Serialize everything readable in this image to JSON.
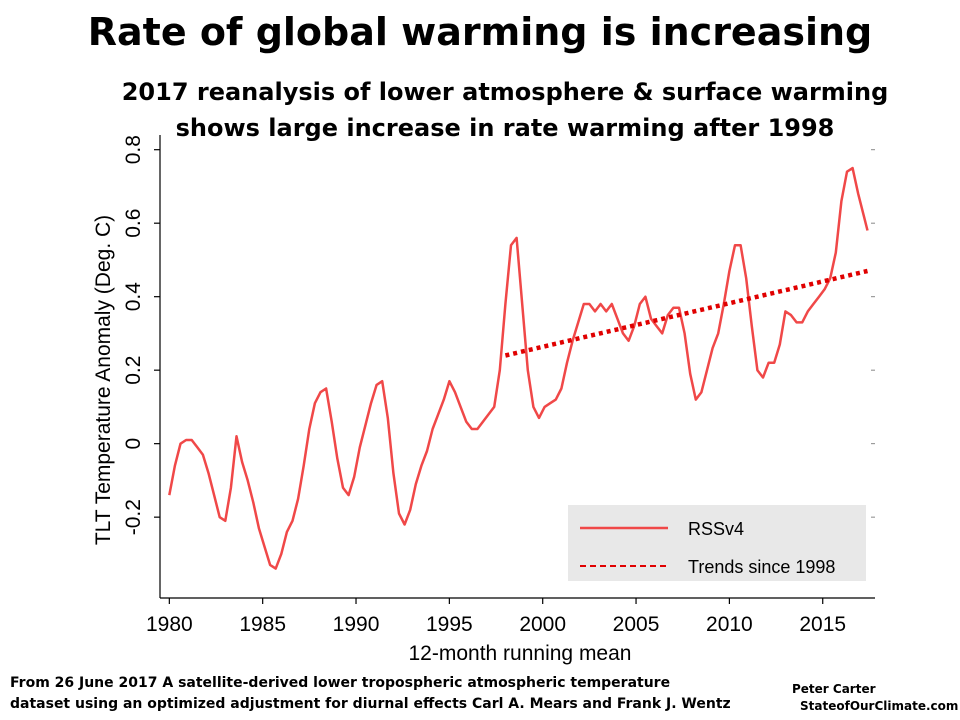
{
  "slide": {
    "title": "Rate of global warming is increasing",
    "subtitle_line1": "2017 reanalysis of lower atmosphere & surface warming",
    "subtitle_line2": "shows large increase in rate warming after 1998"
  },
  "source": {
    "line1": "From 26 June 2017 A satellite-derived lower tropospheric atmospheric temperature",
    "line2": "dataset using an optimized adjustment for diurnal effects  Carl A. Mears and Frank J. Wentz"
  },
  "credit": {
    "author": "Peter Carter",
    "site": "StateofOurClimate.com"
  },
  "colors": {
    "series": "#f04848",
    "trend": "#e00000",
    "legend_bg": "#e8e8e8"
  },
  "chart_data": {
    "type": "line",
    "xlabel": "12-month running mean",
    "ylabel": "TLT Temperature Anomaly (Deg. C)",
    "xlim": [
      1979.5,
      2017.8
    ],
    "ylim": [
      -0.42,
      0.84
    ],
    "xticks": [
      1980,
      1985,
      1990,
      1995,
      2000,
      2005,
      2010,
      2015
    ],
    "yticks": [
      -0.2,
      0,
      0.2,
      0.4,
      0.6,
      0.8
    ],
    "ytick_labels": [
      "-0.2",
      "0",
      "0.2",
      "0.4",
      "0.6",
      "0.8"
    ],
    "legend_position": "bottom-right",
    "series": [
      {
        "name": "RSSv4",
        "style": "solid",
        "x": [
          1980.0,
          1980.3,
          1980.6,
          1980.9,
          1981.2,
          1981.5,
          1981.8,
          1982.1,
          1982.4,
          1982.7,
          1983.0,
          1983.3,
          1983.6,
          1983.9,
          1984.2,
          1984.5,
          1984.8,
          1985.1,
          1985.4,
          1985.7,
          1986.0,
          1986.3,
          1986.6,
          1986.9,
          1987.2,
          1987.5,
          1987.8,
          1988.1,
          1988.4,
          1988.7,
          1989.0,
          1989.3,
          1989.6,
          1989.9,
          1990.2,
          1990.5,
          1990.8,
          1991.1,
          1991.4,
          1991.7,
          1992.0,
          1992.3,
          1992.6,
          1992.9,
          1993.2,
          1993.5,
          1993.8,
          1994.1,
          1994.4,
          1994.7,
          1995.0,
          1995.3,
          1995.6,
          1995.9,
          1996.2,
          1996.5,
          1996.8,
          1997.1,
          1997.4,
          1997.7,
          1998.0,
          1998.3,
          1998.6,
          1998.9,
          1999.2,
          1999.5,
          1999.8,
          2000.1,
          2000.4,
          2000.7,
          2001.0,
          2001.3,
          2001.6,
          2001.9,
          2002.2,
          2002.5,
          2002.8,
          2003.1,
          2003.4,
          2003.7,
          2004.0,
          2004.3,
          2004.6,
          2004.9,
          2005.2,
          2005.5,
          2005.8,
          2006.1,
          2006.4,
          2006.7,
          2007.0,
          2007.3,
          2007.6,
          2007.9,
          2008.2,
          2008.5,
          2008.8,
          2009.1,
          2009.4,
          2009.7,
          2010.0,
          2010.3,
          2010.6,
          2010.9,
          2011.2,
          2011.5,
          2011.8,
          2012.1,
          2012.4,
          2012.7,
          2013.0,
          2013.3,
          2013.6,
          2013.9,
          2014.2,
          2014.5,
          2014.8,
          2015.1,
          2015.4,
          2015.7,
          2016.0,
          2016.3,
          2016.6,
          2016.9,
          2017.2,
          2017.4
        ],
        "y": [
          -0.14,
          -0.06,
          0.0,
          0.01,
          0.01,
          -0.01,
          -0.03,
          -0.08,
          -0.14,
          -0.2,
          -0.21,
          -0.12,
          0.02,
          -0.05,
          -0.1,
          -0.16,
          -0.23,
          -0.28,
          -0.33,
          -0.34,
          -0.3,
          -0.24,
          -0.21,
          -0.15,
          -0.06,
          0.04,
          0.11,
          0.14,
          0.15,
          0.06,
          -0.04,
          -0.12,
          -0.14,
          -0.09,
          -0.01,
          0.05,
          0.11,
          0.16,
          0.17,
          0.07,
          -0.08,
          -0.19,
          -0.22,
          -0.18,
          -0.11,
          -0.06,
          -0.02,
          0.04,
          0.08,
          0.12,
          0.17,
          0.14,
          0.1,
          0.06,
          0.04,
          0.04,
          0.06,
          0.08,
          0.1,
          0.2,
          0.38,
          0.54,
          0.56,
          0.38,
          0.2,
          0.1,
          0.07,
          0.1,
          0.11,
          0.12,
          0.15,
          0.22,
          0.28,
          0.33,
          0.38,
          0.38,
          0.36,
          0.38,
          0.36,
          0.38,
          0.34,
          0.3,
          0.28,
          0.32,
          0.38,
          0.4,
          0.34,
          0.32,
          0.3,
          0.35,
          0.37,
          0.37,
          0.3,
          0.19,
          0.12,
          0.14,
          0.2,
          0.26,
          0.3,
          0.38,
          0.47,
          0.54,
          0.54,
          0.45,
          0.32,
          0.2,
          0.18,
          0.22,
          0.22,
          0.27,
          0.36,
          0.35,
          0.33,
          0.33,
          0.36,
          0.38,
          0.4,
          0.42,
          0.45,
          0.52,
          0.66,
          0.74,
          0.75,
          0.68,
          0.62,
          0.58
        ]
      },
      {
        "name": "Trends since 1998",
        "style": "dotted",
        "x": [
          1998.0,
          2017.4
        ],
        "y": [
          0.24,
          0.47
        ]
      }
    ]
  }
}
